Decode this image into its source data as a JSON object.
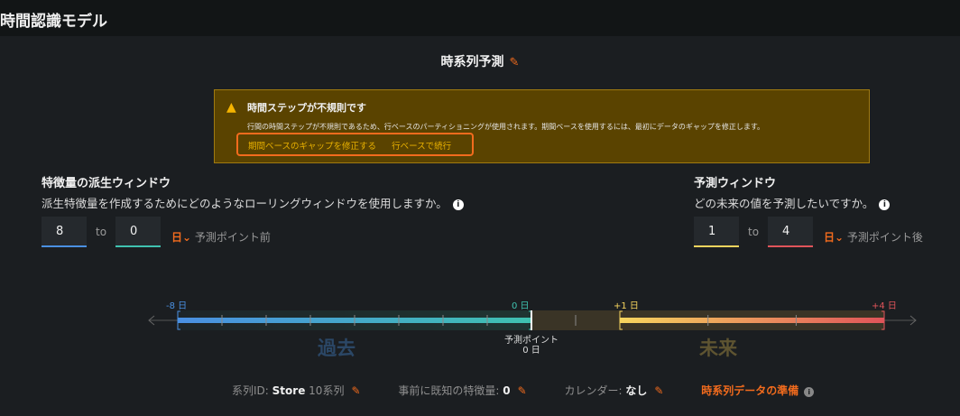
{
  "app_title": "時間認識モデル",
  "page_title": "時系列予測",
  "warning": {
    "title": "時間ステップが不規則です",
    "body": "行間の時間ステップが不規則であるため、行ベースのパーティショニングが使用されます。期間ベースを使用するには、最初にデータのギャップを修正します。",
    "fix_link": "期間ベースのギャップを修正する",
    "continue_link": "行ベースで続行"
  },
  "fdw": {
    "title": "特徴量の派生ウィンドウ",
    "desc": "派生特徴量を作成するためにどのようなローリングウィンドウを使用しますか。",
    "from": "8",
    "to_label": "to",
    "to": "0",
    "unit": "日",
    "suffix": "予測ポイント前"
  },
  "fw": {
    "title": "予測ウィンドウ",
    "desc": "どの未来の値を予測したいですか。",
    "from": "1",
    "to_label": "to",
    "to": "4",
    "unit": "日",
    "suffix": "予測ポイント後"
  },
  "timeline": {
    "past_start": "-8 日",
    "past_end": "0 日",
    "future_start": "+1 日",
    "future_end": "+4 日",
    "past_label": "過去",
    "future_label": "未来",
    "fp_label": "予測ポイント",
    "fp_value": "0 日"
  },
  "footer": {
    "series_label": "系列ID:",
    "series_value": "Store",
    "series_count": "10系列",
    "known_label": "事前に既知の特徴量:",
    "known_value": "0",
    "calendar_label": "カレンダー:",
    "calendar_value": "なし",
    "prep_link": "時系列データの準備"
  },
  "colors": {
    "accent": "#f26b1d",
    "past_start": "#4a90e2",
    "past_end": "#3fc2b0",
    "future_start": "#f7d55e",
    "future_end": "#e0545a"
  }
}
